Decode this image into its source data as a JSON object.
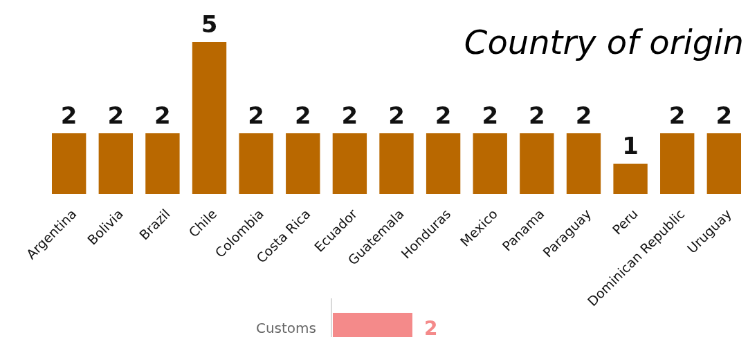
{
  "chart_data": [
    {
      "type": "bar",
      "title": "Country of origin",
      "categories": [
        "Argentina",
        "Bolivia",
        "Brazil",
        "Chile",
        "Colombia",
        "Costa Rica",
        "Ecuador",
        "Guatemala",
        "Honduras",
        "Mexico",
        "Panama",
        "Paraguay",
        "Peru",
        "Dominican Republic",
        "Uruguay"
      ],
      "values": [
        2,
        2,
        2,
        5,
        2,
        2,
        2,
        2,
        2,
        2,
        2,
        2,
        1,
        2,
        2
      ],
      "color": "#b96800",
      "data_labels": true
    },
    {
      "type": "bar",
      "orientation": "horizontal",
      "categories": [
        "Customs"
      ],
      "values": [
        2
      ],
      "color": "#f48a8a",
      "data_labels": true
    }
  ]
}
